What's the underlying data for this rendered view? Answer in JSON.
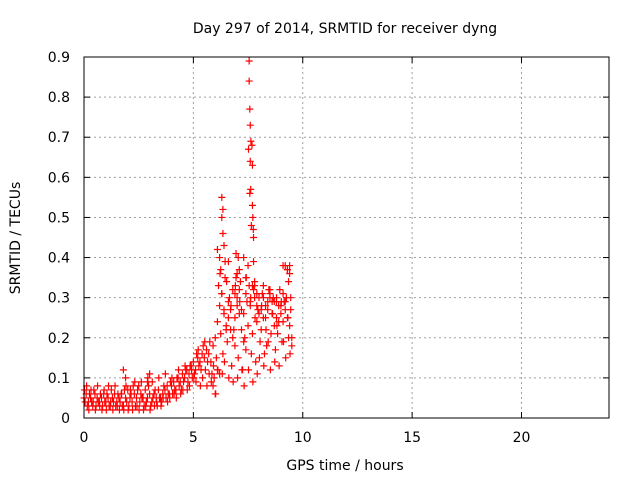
{
  "chart_data": {
    "type": "scatter",
    "title": "Day 297 of 2014, SRMTID for receiver dyng",
    "xlabel": "GPS time / hours",
    "ylabel": "SRMTID / TECUs",
    "xlim": [
      0,
      24
    ],
    "ylim": [
      0,
      0.9
    ],
    "xticks": [
      "0",
      "5",
      "10",
      "15",
      "20"
    ],
    "yticks": [
      "0",
      "0.1",
      "0.2",
      "0.3",
      "0.4",
      "0.5",
      "0.6",
      "0.7",
      "0.8",
      "0.9"
    ],
    "marker": "+",
    "color": "#ff0000",
    "grid": true,
    "series": [
      {
        "name": "SRMTID",
        "description": "approximate point cloud read from the plot",
        "x": [
          0.0,
          0.1,
          0.2,
          0.3,
          0.4,
          0.5,
          0.6,
          0.7,
          0.8,
          0.9,
          1.0,
          1.1,
          1.2,
          1.3,
          1.4,
          1.5,
          1.6,
          1.7,
          1.8,
          1.9,
          2.0,
          2.1,
          2.2,
          2.3,
          2.4,
          2.5,
          2.6,
          2.7,
          2.8,
          2.9,
          3.0,
          3.1,
          3.2,
          3.3,
          3.4,
          3.5,
          3.6,
          3.7,
          3.8,
          3.9,
          4.0,
          4.1,
          4.2,
          4.3,
          4.4,
          4.5,
          4.6,
          4.7,
          4.8,
          4.9,
          5.0,
          5.1,
          5.2,
          5.3,
          5.4,
          5.5,
          5.6,
          5.7,
          5.8,
          5.9,
          6.0,
          6.1,
          6.2,
          6.3,
          6.4,
          6.5,
          6.6,
          6.7,
          6.8,
          6.9,
          7.0,
          7.1,
          7.2,
          7.3,
          7.4,
          7.5,
          7.6,
          7.7,
          7.8,
          7.9,
          8.0,
          8.1,
          8.2,
          8.3,
          8.4,
          8.5,
          8.6,
          8.7,
          8.8,
          8.9,
          9.0,
          9.1,
          9.2,
          9.3,
          9.4,
          9.5,
          0.05,
          0.15,
          0.25,
          0.35,
          0.45,
          0.55,
          0.65,
          0.75,
          0.85,
          0.95,
          1.05,
          1.15,
          1.25,
          1.35,
          1.45,
          1.55,
          1.65,
          1.75,
          1.85,
          1.95,
          2.05,
          2.15,
          2.25,
          2.35,
          2.45,
          2.55,
          2.65,
          2.75,
          2.85,
          2.95,
          3.05,
          3.15,
          3.25,
          3.35,
          3.45,
          3.55,
          3.65,
          3.75,
          3.85,
          3.95,
          4.05,
          4.15,
          4.25,
          4.35,
          4.45,
          4.55,
          4.65,
          4.75,
          4.85,
          4.95,
          5.05,
          5.15,
          5.25,
          5.35,
          5.45,
          5.55,
          5.65,
          5.75,
          5.85,
          5.95,
          6.05,
          6.15,
          6.25,
          6.35,
          6.45,
          6.55,
          6.65,
          6.75,
          6.85,
          6.95,
          7.05,
          7.15,
          7.25,
          7.35,
          7.45,
          7.55,
          7.65,
          7.75,
          7.85,
          7.95,
          8.05,
          8.15,
          8.25,
          8.35,
          8.45,
          8.55,
          8.65,
          8.75,
          8.85,
          8.95,
          9.05,
          9.15,
          9.25,
          9.35,
          9.45,
          0.02,
          0.12,
          0.22,
          0.32,
          0.42,
          0.52,
          0.62,
          0.72,
          0.82,
          0.92,
          1.02,
          1.12,
          1.22,
          1.32,
          1.42,
          1.52,
          1.62,
          1.72,
          1.82,
          1.92,
          2.02,
          2.12,
          2.22,
          2.32,
          2.42,
          2.52,
          2.62,
          2.72,
          2.82,
          2.92,
          3.02,
          3.12,
          3.22,
          3.32,
          3.42,
          3.52,
          3.62,
          3.72,
          3.82,
          3.92,
          4.02,
          4.12,
          4.22,
          4.32,
          4.42,
          4.52,
          4.62,
          4.72,
          4.82,
          4.92,
          5.02,
          5.12,
          5.22,
          5.32,
          5.42,
          5.52,
          5.62,
          5.72,
          5.82,
          5.92,
          6.02,
          6.12,
          6.22,
          6.32,
          6.42,
          6.52,
          6.62,
          6.72,
          6.82,
          6.92,
          7.02,
          7.12,
          7.22,
          7.32,
          7.42,
          7.52,
          7.62,
          7.72,
          7.82,
          7.92,
          8.02,
          8.12,
          8.22,
          8.32,
          8.42,
          8.52,
          8.62,
          8.72,
          8.82,
          8.92,
          9.02,
          9.12,
          9.22,
          9.32,
          9.42,
          5.9,
          6.0,
          6.1,
          6.2,
          6.3,
          6.4,
          6.5,
          6.6,
          6.7,
          6.8,
          6.9,
          7.0,
          7.1,
          7.2,
          7.3,
          7.4,
          7.5,
          7.6,
          7.7,
          7.8,
          7.9,
          8.0,
          8.1,
          8.2,
          8.3,
          8.4,
          8.5,
          8.6,
          8.7,
          8.8,
          8.9,
          9.0,
          9.1,
          9.2,
          9.3,
          9.4,
          7.55,
          7.55,
          7.58,
          7.6,
          7.6,
          7.62,
          7.65,
          7.7,
          7.72,
          7.75,
          7.52,
          7.58,
          7.63,
          7.68,
          7.7,
          7.74,
          6.1,
          6.2,
          6.25,
          6.3,
          6.35,
          6.35,
          6.4,
          6.45,
          6.95,
          7.0,
          7.05,
          7.1,
          7.75,
          7.8,
          8.5,
          8.6,
          9.2,
          9.3,
          9.35,
          9.4,
          9.45,
          1.8,
          1.9,
          2.9,
          3.0,
          6.3,
          6.6,
          6.9,
          7.3,
          7.4,
          7.9,
          8.2,
          8.8,
          9.1,
          9.5
        ],
        "y": [
          0.05,
          0.06,
          0.04,
          0.05,
          0.03,
          0.06,
          0.05,
          0.04,
          0.05,
          0.06,
          0.04,
          0.05,
          0.03,
          0.05,
          0.06,
          0.04,
          0.05,
          0.06,
          0.03,
          0.05,
          0.07,
          0.05,
          0.04,
          0.06,
          0.05,
          0.08,
          0.06,
          0.05,
          0.07,
          0.05,
          0.06,
          0.04,
          0.06,
          0.05,
          0.07,
          0.05,
          0.06,
          0.07,
          0.08,
          0.06,
          0.08,
          0.09,
          0.07,
          0.1,
          0.09,
          0.11,
          0.1,
          0.12,
          0.11,
          0.13,
          0.14,
          0.12,
          0.15,
          0.14,
          0.16,
          0.15,
          0.17,
          0.16,
          0.14,
          0.18,
          0.2,
          0.24,
          0.28,
          0.31,
          0.26,
          0.22,
          0.25,
          0.27,
          0.2,
          0.18,
          0.3,
          0.26,
          0.22,
          0.19,
          0.17,
          0.23,
          0.28,
          0.33,
          0.3,
          0.24,
          0.26,
          0.22,
          0.25,
          0.28,
          0.27,
          0.3,
          0.26,
          0.23,
          0.25,
          0.28,
          0.26,
          0.24,
          0.27,
          0.25,
          0.23,
          0.2,
          0.04,
          0.03,
          0.06,
          0.04,
          0.07,
          0.03,
          0.04,
          0.06,
          0.03,
          0.04,
          0.06,
          0.03,
          0.07,
          0.04,
          0.03,
          0.06,
          0.04,
          0.03,
          0.07,
          0.04,
          0.03,
          0.06,
          0.08,
          0.03,
          0.07,
          0.04,
          0.05,
          0.03,
          0.04,
          0.08,
          0.03,
          0.05,
          0.07,
          0.03,
          0.05,
          0.04,
          0.08,
          0.05,
          0.06,
          0.09,
          0.06,
          0.07,
          0.1,
          0.08,
          0.07,
          0.09,
          0.12,
          0.09,
          0.13,
          0.1,
          0.11,
          0.16,
          0.13,
          0.12,
          0.18,
          0.12,
          0.14,
          0.19,
          0.11,
          0.1,
          0.15,
          0.33,
          0.21,
          0.16,
          0.35,
          0.19,
          0.3,
          0.13,
          0.22,
          0.35,
          0.15,
          0.34,
          0.12,
          0.2,
          0.29,
          0.33,
          0.16,
          0.39,
          0.14,
          0.27,
          0.19,
          0.31,
          0.16,
          0.18,
          0.32,
          0.21,
          0.3,
          0.17,
          0.21,
          0.32,
          0.19,
          0.29,
          0.3,
          0.2,
          0.27,
          0.07,
          0.08,
          0.02,
          0.07,
          0.04,
          0.02,
          0.08,
          0.03,
          0.02,
          0.07,
          0.02,
          0.08,
          0.04,
          0.02,
          0.08,
          0.03,
          0.02,
          0.06,
          0.02,
          0.08,
          0.02,
          0.07,
          0.02,
          0.09,
          0.03,
          0.02,
          0.09,
          0.02,
          0.03,
          0.1,
          0.02,
          0.09,
          0.03,
          0.04,
          0.1,
          0.03,
          0.05,
          0.11,
          0.04,
          0.05,
          0.1,
          0.06,
          0.05,
          0.12,
          0.06,
          0.07,
          0.13,
          0.07,
          0.08,
          0.12,
          0.1,
          0.09,
          0.17,
          0.08,
          0.1,
          0.19,
          0.08,
          0.11,
          0.09,
          0.13,
          0.06,
          0.12,
          0.36,
          0.11,
          0.14,
          0.34,
          0.1,
          0.28,
          0.09,
          0.33,
          0.1,
          0.29,
          0.12,
          0.08,
          0.35,
          0.12,
          0.3,
          0.09,
          0.25,
          0.11,
          0.15,
          0.28,
          0.13,
          0.22,
          0.19,
          0.12,
          0.26,
          0.14,
          0.23,
          0.13,
          0.29,
          0.19,
          0.15,
          0.25,
          0.16,
          0.08,
          0.06,
          0.12,
          0.11,
          0.31,
          0.27,
          0.23,
          0.29,
          0.22,
          0.32,
          0.25,
          0.28,
          0.32,
          0.27,
          0.26,
          0.31,
          0.38,
          0.29,
          0.21,
          0.34,
          0.28,
          0.3,
          0.27,
          0.33,
          0.25,
          0.29,
          0.31,
          0.26,
          0.29,
          0.3,
          0.24,
          0.28,
          0.31,
          0.29,
          0.37,
          0.36,
          0.89,
          0.84,
          0.77,
          0.73,
          0.64,
          0.57,
          0.48,
          0.53,
          0.5,
          0.45,
          0.67,
          0.56,
          0.69,
          0.68,
          0.63,
          0.47,
          0.42,
          0.4,
          0.37,
          0.55,
          0.52,
          0.46,
          0.43,
          0.39,
          0.41,
          0.36,
          0.4,
          0.37,
          0.32,
          0.33,
          0.32,
          0.29,
          0.38,
          0.37,
          0.34,
          0.38,
          0.3,
          0.12,
          0.1,
          0.09,
          0.11,
          0.5,
          0.39,
          0.31,
          0.4,
          0.35,
          0.31,
          0.3,
          0.29,
          0.38,
          0.18
        ]
      }
    ]
  }
}
